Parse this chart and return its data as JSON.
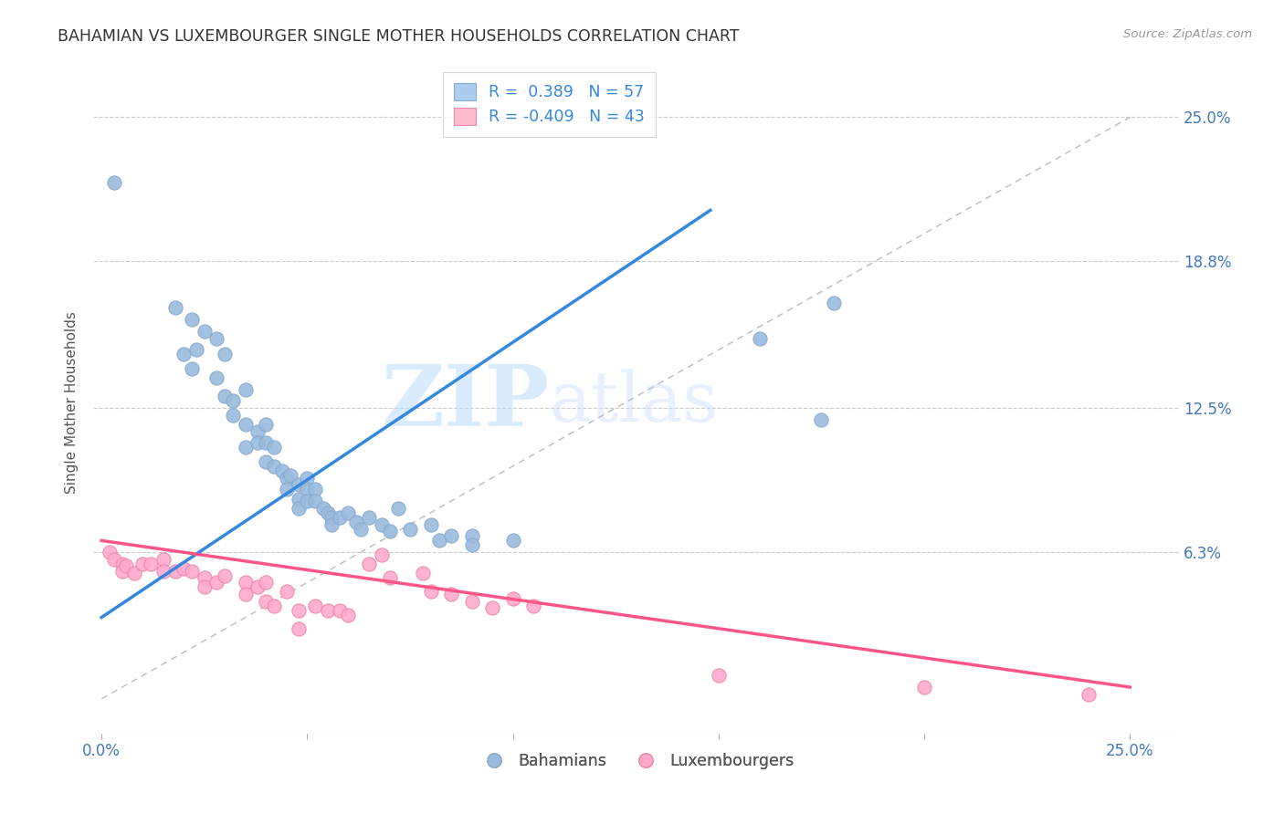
{
  "title": "BAHAMIAN VS LUXEMBOURGER SINGLE MOTHER HOUSEHOLDS CORRELATION CHART",
  "source": "Source: ZipAtlas.com",
  "ylabel": "Single Mother Households",
  "ytick_labels": [
    "6.3%",
    "12.5%",
    "18.8%",
    "25.0%"
  ],
  "ytick_values": [
    0.063,
    0.125,
    0.188,
    0.25
  ],
  "xtick_values": [
    0.0,
    0.05,
    0.1,
    0.15,
    0.2,
    0.25
  ],
  "xlim": [
    -0.002,
    0.262
  ],
  "ylim": [
    -0.015,
    0.27
  ],
  "blue_color": "#99BBDD",
  "pink_color": "#FFAACC",
  "blue_scatter": [
    [
      0.003,
      0.222
    ],
    [
      0.018,
      0.168
    ],
    [
      0.022,
      0.163
    ],
    [
      0.025,
      0.158
    ],
    [
      0.02,
      0.148
    ],
    [
      0.023,
      0.15
    ],
    [
      0.022,
      0.142
    ],
    [
      0.028,
      0.155
    ],
    [
      0.03,
      0.148
    ],
    [
      0.028,
      0.138
    ],
    [
      0.03,
      0.13
    ],
    [
      0.032,
      0.128
    ],
    [
      0.035,
      0.133
    ],
    [
      0.032,
      0.122
    ],
    [
      0.035,
      0.118
    ],
    [
      0.038,
      0.115
    ],
    [
      0.035,
      0.108
    ],
    [
      0.038,
      0.11
    ],
    [
      0.04,
      0.118
    ],
    [
      0.04,
      0.11
    ],
    [
      0.04,
      0.102
    ],
    [
      0.042,
      0.108
    ],
    [
      0.042,
      0.1
    ],
    [
      0.044,
      0.098
    ],
    [
      0.045,
      0.095
    ],
    [
      0.045,
      0.09
    ],
    [
      0.046,
      0.096
    ],
    [
      0.048,
      0.092
    ],
    [
      0.048,
      0.086
    ],
    [
      0.048,
      0.082
    ],
    [
      0.05,
      0.095
    ],
    [
      0.05,
      0.09
    ],
    [
      0.05,
      0.085
    ],
    [
      0.052,
      0.09
    ],
    [
      0.052,
      0.085
    ],
    [
      0.054,
      0.082
    ],
    [
      0.055,
      0.08
    ],
    [
      0.056,
      0.078
    ],
    [
      0.056,
      0.075
    ],
    [
      0.058,
      0.078
    ],
    [
      0.06,
      0.08
    ],
    [
      0.062,
      0.076
    ],
    [
      0.063,
      0.073
    ],
    [
      0.065,
      0.078
    ],
    [
      0.068,
      0.075
    ],
    [
      0.07,
      0.072
    ],
    [
      0.072,
      0.082
    ],
    [
      0.075,
      0.073
    ],
    [
      0.08,
      0.075
    ],
    [
      0.082,
      0.068
    ],
    [
      0.085,
      0.07
    ],
    [
      0.09,
      0.07
    ],
    [
      0.09,
      0.066
    ],
    [
      0.1,
      0.068
    ],
    [
      0.175,
      0.12
    ],
    [
      0.16,
      0.155
    ],
    [
      0.178,
      0.17
    ]
  ],
  "pink_scatter": [
    [
      0.002,
      0.063
    ],
    [
      0.003,
      0.06
    ],
    [
      0.005,
      0.058
    ],
    [
      0.005,
      0.055
    ],
    [
      0.006,
      0.057
    ],
    [
      0.008,
      0.054
    ],
    [
      0.01,
      0.058
    ],
    [
      0.012,
      0.058
    ],
    [
      0.015,
      0.06
    ],
    [
      0.015,
      0.055
    ],
    [
      0.018,
      0.055
    ],
    [
      0.02,
      0.056
    ],
    [
      0.022,
      0.055
    ],
    [
      0.025,
      0.052
    ],
    [
      0.025,
      0.048
    ],
    [
      0.028,
      0.05
    ],
    [
      0.03,
      0.053
    ],
    [
      0.035,
      0.05
    ],
    [
      0.035,
      0.045
    ],
    [
      0.038,
      0.048
    ],
    [
      0.04,
      0.042
    ],
    [
      0.04,
      0.05
    ],
    [
      0.042,
      0.04
    ],
    [
      0.045,
      0.046
    ],
    [
      0.048,
      0.03
    ],
    [
      0.048,
      0.038
    ],
    [
      0.052,
      0.04
    ],
    [
      0.055,
      0.038
    ],
    [
      0.058,
      0.038
    ],
    [
      0.06,
      0.036
    ],
    [
      0.065,
      0.058
    ],
    [
      0.068,
      0.062
    ],
    [
      0.07,
      0.052
    ],
    [
      0.078,
      0.054
    ],
    [
      0.08,
      0.046
    ],
    [
      0.085,
      0.045
    ],
    [
      0.09,
      0.042
    ],
    [
      0.095,
      0.039
    ],
    [
      0.1,
      0.043
    ],
    [
      0.105,
      0.04
    ],
    [
      0.2,
      0.005
    ],
    [
      0.15,
      0.01
    ],
    [
      0.24,
      0.002
    ]
  ],
  "blue_line": [
    [
      0.0,
      0.035
    ],
    [
      0.148,
      0.21
    ]
  ],
  "pink_line": [
    [
      0.0,
      0.068
    ],
    [
      0.25,
      0.005
    ]
  ],
  "dashed_line": [
    [
      0.0,
      0.0
    ],
    [
      0.25,
      0.25
    ]
  ],
  "watermark_zip": "ZIP",
  "watermark_atlas": "atlas",
  "background_color": "#FFFFFF",
  "legend_blue_label": "R =  0.389   N = 57",
  "legend_pink_label": "R = -0.409   N = 43",
  "bottom_legend_blue": "Bahamians",
  "bottom_legend_pink": "Luxembourgers",
  "legend_blue_patch": "#AACCEE",
  "legend_pink_patch": "#FFBBCC"
}
